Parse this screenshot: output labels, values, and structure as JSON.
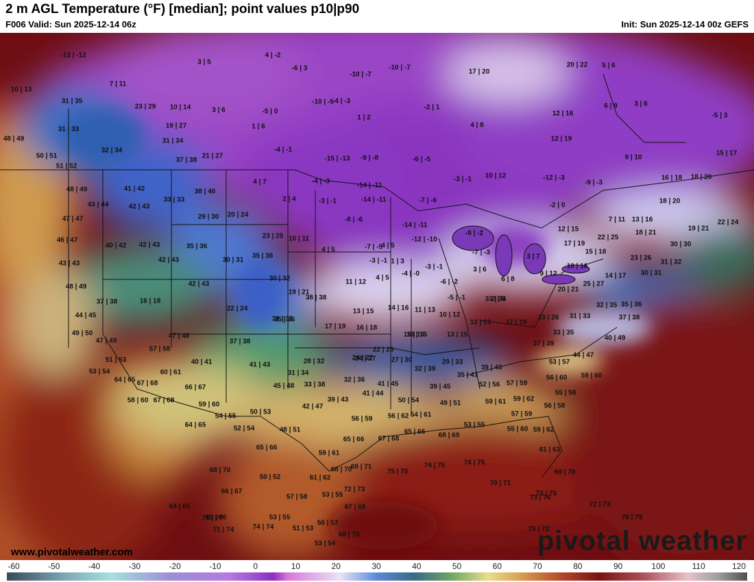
{
  "header": {
    "title": "2 m AGL Temperature (°F) [median]; point values p10|p90",
    "valid": "F006 Valid: Sun 2025-12-14 06z",
    "init": "Init: Sun 2025-12-14 00z GEFS"
  },
  "footer": {
    "website": "www.pivotalweather.com",
    "logo": "pivotal weather"
  },
  "colorbar": {
    "min": -60,
    "max": 120,
    "ticks": [
      "-60",
      "-50",
      "-40",
      "-30",
      "-20",
      "-10",
      "0",
      "10",
      "20",
      "30",
      "40",
      "50",
      "60",
      "70",
      "80",
      "90",
      "100",
      "110",
      "120"
    ]
  },
  "point_values": [
    "-13 | -12",
    "3 | 5",
    "4 | -2",
    "-6 | 3",
    "-10 | -7",
    "-10 | -7",
    "17 | 20",
    "20 | 22",
    "5 | 6",
    "10 | 13",
    "7 | 11",
    "-10 | -5",
    "-4 | -3",
    "-2 | 1",
    "12 | 16",
    "6 | 9",
    "3 | 6",
    "31 | 35",
    "23 | 29",
    "10 | 14",
    "3 | 6",
    "-5 | 0",
    "1 | 2",
    "4 | 8",
    "-5 | 3",
    "31 | 33",
    "19 | 27",
    "1 | 6",
    "12 | 19",
    "48 | 49",
    "31 | 34",
    "32 | 34",
    "50 | 51",
    "-4 | -1",
    "-15 | -13",
    "-9 | -8",
    "-6 | -5",
    "9 | 10",
    "15 | 17",
    "37 | 38",
    "21 | 27",
    "51 | 52",
    "-3 | -1",
    "10 | 12",
    "-12 | -3",
    "-9 | -3",
    "16 | 18",
    "18 | 20",
    "48 | 49",
    "41 | 42",
    "4 | 7",
    "-4 | -3",
    "-14 | -11",
    "43 | 44",
    "38 | 40",
    "2 | 4",
    "-3 | -1",
    "-14 | -11",
    "-7 | -6",
    "-2 | 0",
    "18 | 20",
    "33 | 33",
    "42 | 43",
    "47 | 47",
    "29 | 30",
    "20 | 24",
    "-8 | -6",
    "7 | 11",
    "13 | 16",
    "22 | 24",
    "23 | 25",
    "10 | 11",
    "-14 | -11",
    "-8 | -2",
    "12 | 15",
    "22 | 25",
    "18 | 21",
    "19 | 21",
    "46 | 47",
    "40 | 42",
    "42 | 43",
    "35 | 36",
    "4 | 5",
    "-12 | -10",
    "-7 | -3",
    "4 | 5",
    "17 | 19",
    "15 | 18",
    "30 | 30",
    "42 | 43",
    "30 | 31",
    "35 | 36",
    "-7 | -5",
    "-3 | -1",
    "1 | 3",
    "3 | 7",
    "23 | 26",
    "43 | 43",
    "-4 | -0",
    "-3 | -1",
    "3 | 6",
    "10 | 16",
    "31 | 32",
    "48 | 49",
    "42 | 43",
    "30 | 32",
    "4 | 5",
    "11 | 12",
    "-6 | -2",
    "6 | 8",
    "9 | 12",
    "14 | 17",
    "25 | 27",
    "30 | 31",
    "20 | 21",
    "19 | 21",
    "38 | 38",
    "22 | 24",
    "16 | 18",
    "37 | 38",
    "33 | 34",
    "-5 | -1",
    "2 | 5",
    "32 | 35",
    "35 | 36",
    "13 | 15",
    "14 | 16",
    "11 | 13",
    "10 | 12",
    "13 | 15",
    "44 | 45",
    "35 | 36",
    "31 | 33",
    "17 | 19",
    "16 | 18",
    "12 | 13",
    "17 | 19",
    "23 | 26",
    "31 | 33",
    "37 | 38",
    "49 | 50",
    "47 | 49",
    "47 | 48",
    "13 | 15",
    "13 | 15",
    "33 | 35",
    "40 | 49",
    "57 | 58",
    "37 | 38",
    "22 | 25",
    "24 | 27",
    "37 | 39",
    "40 | 41",
    "28 | 32",
    "24 | 27",
    "27 | 30",
    "29 | 33",
    "44 | 47",
    "51 | 53",
    "41 | 43",
    "53 | 57",
    "32 | 39",
    "39 | 43",
    "53 | 54",
    "60 | 61",
    "31 | 34",
    "59 | 60",
    "35 | 41",
    "64 | 65",
    "67 | 68",
    "32 | 36",
    "56 | 60",
    "45 | 48",
    "33 | 38",
    "41 | 45",
    "52 | 56",
    "57 | 59",
    "66 | 67",
    "39 | 45",
    "55 | 58",
    "58 | 60",
    "67 | 68",
    "59 | 60",
    "39 | 43",
    "41 | 44",
    "50 | 54",
    "59 | 61",
    "59 | 62",
    "42 | 47",
    "49 | 51",
    "56 | 58",
    "50 | 53",
    "54 | 55",
    "57 | 59",
    "56 | 59",
    "56 | 62",
    "54 | 61",
    "52 | 54",
    "64 | 65",
    "48 | 51",
    "55 | 60",
    "59 | 62",
    "65 | 66",
    "67 | 68",
    "65 | 66",
    "68 | 69",
    "53 | 55",
    "65 | 66",
    "61 | 63",
    "59 | 61",
    "68 | 70",
    "69 | 71",
    "68 | 70",
    "75 | 75",
    "74 | 75",
    "74 | 75",
    "50 | 52",
    "61 | 62",
    "70 | 71",
    "69 | 70",
    "73 | 76",
    "66 | 67",
    "72 | 73",
    "57 | 58",
    "53 | 55",
    "73 | 75",
    "67 | 68",
    "64 | 65",
    "72 | 73",
    "76 | 77",
    "65 | 66",
    "53 | 55",
    "79 | 79",
    "56 | 57",
    "71 | 74",
    "74 | 74",
    "51 | 53",
    "68 | 70",
    "70 | 72",
    "53 | 54"
  ]
}
